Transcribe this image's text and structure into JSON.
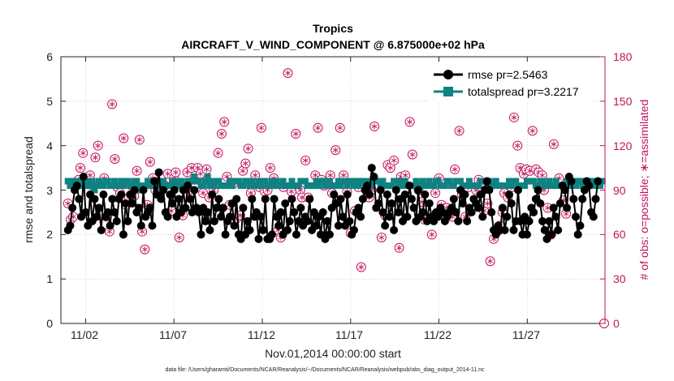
{
  "chart_data": {
    "type": "line",
    "title_line1": "Tropics",
    "title_line2": "AIRCRAFT_V_WIND_COMPONENT @ 6.875000e+02 hPa",
    "xlabel": "Nov.01,2014 00:00:00 start",
    "ylabel_left": "rmse and totalspread",
    "ylabel_right": "# of obs: o=possible; ∗=assimilated",
    "footnote": "data file: /Users/gharamti/Documents/NCAR/Reanalysis/~/Documents/NCAR/Reanalysis/webpub/obs_diag_output_2014-11.nc",
    "xlim": [
      0.6,
      31.4
    ],
    "ylim_left": [
      0,
      6
    ],
    "ylim_right": [
      0,
      180
    ],
    "x_ticks": [
      2,
      7,
      12,
      17,
      22,
      27
    ],
    "x_tick_labels": [
      "11/02",
      "11/07",
      "11/12",
      "11/17",
      "11/22",
      "11/27"
    ],
    "y_ticks_left": [
      "0",
      "1",
      "2",
      "3",
      "4",
      "5",
      "6"
    ],
    "y_ticks_right": [
      "0",
      "30",
      "60",
      "90",
      "120",
      "150",
      "180"
    ],
    "colors": {
      "rmse": "#000000",
      "spread": "#0f8282",
      "obs": "#c0135e"
    },
    "legend": [
      {
        "name": "rmse pr=2.5463"
      },
      {
        "name": "totalspread pr=3.2217"
      }
    ],
    "series_rmse": {
      "name": "rmse",
      "axis": "left",
      "values": [
        2.1,
        2.2,
        2.6,
        3.0,
        3.1,
        2.8,
        2.4,
        3.3,
        2.5,
        2.2,
        2.9,
        2.3,
        2.8,
        2.4,
        2.6,
        2.1,
        2.9,
        2.4,
        2.5,
        2.2,
        2.8,
        2.5,
        2.3,
        2.8,
        2.9,
        2.0,
        2.7,
        2.3,
        2.9,
        2.7,
        3.0,
        2.5,
        2.6,
        2.2,
        3.0,
        2.4,
        2.5,
        2.6,
        2.2,
        3.2,
        2.9,
        3.4,
        2.8,
        3.0,
        2.5,
        2.4,
        2.9,
        2.7,
        3.0,
        2.4,
        2.8,
        2.5,
        3.0,
        2.6,
        3.1,
        2.8,
        2.5,
        3.0,
        2.6,
        2.5,
        2.0,
        2.6,
        2.3,
        2.5,
        2.1,
        2.9,
        2.3,
        2.6,
        2.8,
        2.4,
        2.6,
        2.0,
        2.3,
        2.4,
        2.7,
        2.2,
        2.8,
        2.0,
        1.9,
        2.6,
        2.0,
        2.3,
        2.1,
        2.8,
        2.4,
        2.5,
        1.9,
        2.4,
        2.1,
        2.8,
        1.9,
        1.9,
        2.0,
        2.8,
        2.4,
        2.2,
        2.5,
        2.0,
        2.7,
        2.1,
        2.3,
        2.8,
        2.5,
        2.0,
        2.3,
        2.6,
        2.2,
        2.4,
        2.3,
        2.8,
        2.1,
        2.5,
        2.2,
        2.4,
        2.0,
        2.5,
        1.9,
        2.3,
        2.0,
        2.6,
        2.9,
        2.7,
        2.2,
        2.8,
        2.4,
        2.2,
        2.9,
        2.3,
        2.0,
        2.1,
        2.5,
        2.6,
        2.4,
        2.8,
        3.0,
        3.1,
        2.9,
        3.5,
        3.3,
        2.6,
        2.7,
        3.0,
        2.5,
        2.2,
        2.9,
        2.4,
        2.7,
        2.1,
        3.0,
        2.5,
        2.8,
        2.3,
        2.9,
        2.4,
        3.1,
        2.8,
        2.6,
        2.3,
        3.0,
        2.4,
        2.5,
        2.9,
        2.3,
        2.7,
        2.4,
        2.3,
        2.5,
        2.4,
        2.6,
        2.5,
        2.3,
        2.4,
        2.5,
        2.6,
        2.8,
        2.5,
        2.3,
        3.0,
        2.7,
        2.9,
        2.3,
        2.6,
        2.5,
        2.8,
        2.7,
        2.6,
        2.9,
        2.4,
        3.0,
        3.2,
        3.0,
        2.5,
        2.1,
        2.0,
        2.2,
        2.1,
        2.6,
        2.1,
        2.4,
        2.9,
        2.7,
        2.1,
        2.3,
        3.0,
        2.3,
        2.0,
        2.4,
        2.0,
        2.3,
        2.6,
        2.5,
        2.8,
        3.0,
        2.7,
        2.3,
        2.1,
        1.9,
        2.3,
        2.0,
        2.6,
        2.4,
        2.1,
        2.7,
        3.1,
        3.0,
        2.6,
        3.3,
        3.2,
        2.8,
        2.4,
        2.0,
        2.2,
        2.8,
        3.0,
        3.2,
        3.1,
        2.5,
        2.4,
        2.8,
        3.2
      ]
    },
    "series_spread": {
      "name": "totalspread",
      "axis": "left",
      "values": [
        3.2,
        3.1,
        3.2,
        3.2,
        3.2,
        3.1,
        3.1,
        3.2,
        3.1,
        3.2,
        3.1,
        3.2,
        3.0,
        3.1,
        3.2,
        3.1,
        3.1,
        3.2,
        3.2,
        3.1,
        3.1,
        3.2,
        3.1,
        3.1,
        3.2,
        3.1,
        3.2,
        3.2,
        3.1,
        3.1,
        3.2,
        3.2,
        3.1,
        3.0,
        3.1,
        3.1,
        3.2,
        3.1,
        3.2,
        3.2,
        3.1,
        3.2,
        3.1,
        3.2,
        3.1,
        3.1,
        3.1,
        3.2,
        3.1,
        3.2,
        3.1,
        3.2,
        3.1,
        3.1,
        3.2,
        3.2,
        3.2,
        3.3,
        3.2,
        3.2,
        3.1,
        3.1,
        3.2,
        3.3,
        3.1,
        3.2,
        3.1,
        3.2,
        3.2,
        3.1,
        3.1,
        3.1,
        3.1,
        3.2,
        3.1,
        3.2,
        3.2,
        3.2,
        3.1,
        3.1,
        3.2,
        3.2,
        3.1,
        3.2,
        3.1,
        3.1,
        3.2,
        3.1,
        3.2,
        3.2,
        3.1,
        3.1,
        3.2,
        3.1,
        3.2,
        3.1,
        3.1,
        3.2,
        3.1,
        3.1,
        3.1,
        3.2,
        3.1,
        3.1,
        3.1,
        3.2,
        3.2,
        3.2,
        3.1,
        3.1,
        3.1,
        3.1,
        3.2,
        3.1,
        3.2,
        3.2,
        3.1,
        3.1,
        3.2,
        3.1,
        3.1,
        3.1,
        3.2,
        3.1,
        3.2,
        3.2,
        3.1,
        3.2,
        3.2,
        3.1,
        3.2,
        3.1,
        3.2,
        3.2,
        3.1,
        3.2,
        3.1,
        3.1,
        3.2,
        3.2,
        3.2,
        3.1,
        3.2,
        3.1,
        3.1,
        3.1,
        3.1,
        3.2,
        3.2,
        3.1,
        3.2,
        3.1,
        3.2,
        3.1,
        3.1,
        3.1,
        3.1,
        3.2,
        3.1,
        3.1,
        3.2,
        3.1,
        3.1,
        3.2,
        3.1,
        3.1,
        3.2,
        3.2,
        3.1,
        3.1,
        3.1,
        3.2,
        3.2,
        3.1,
        3.1,
        3.2,
        3.2,
        3.2,
        3.1,
        3.1,
        3.1,
        3.2,
        3.1,
        3.1,
        3.1,
        3.1,
        3.2,
        3.2,
        3.2,
        3.1,
        3.2,
        3.1,
        3.1,
        3.2,
        3.1,
        3.1,
        3.1,
        3.1,
        3.1,
        3.2,
        3.1,
        3.2,
        3.2,
        3.1,
        3.1,
        3.1,
        3.1,
        3.2,
        3.2,
        3.2,
        3.2,
        3.1,
        3.1,
        3.2,
        3.2,
        3.1,
        3.1,
        3.2,
        3.1,
        3.1,
        3.2,
        3.1,
        3.1,
        3.1,
        3.1,
        3.2,
        3.2,
        3.1,
        3.2,
        3.1,
        3.2,
        3.2,
        3.1,
        3.2,
        3.2,
        3.2,
        3.2,
        3.1,
        3.2,
        3.1,
        3.1,
        3.2
      ]
    },
    "series_obs_possible": {
      "name": "obs possible",
      "axis": "right",
      "points": [
        [
          1.0,
          81
        ],
        [
          1.15,
          70
        ],
        [
          1.3,
          72
        ],
        [
          1.5,
          93
        ],
        [
          1.6,
          97
        ],
        [
          1.7,
          105
        ],
        [
          1.85,
          115
        ],
        [
          2.1,
          94
        ],
        [
          2.25,
          100
        ],
        [
          2.4,
          93
        ],
        [
          2.55,
          112
        ],
        [
          2.7,
          120
        ],
        [
          2.85,
          94
        ],
        [
          3.05,
          98
        ],
        [
          3.2,
          72
        ],
        [
          3.35,
          62
        ],
        [
          3.5,
          148
        ],
        [
          3.65,
          111
        ],
        [
          3.8,
          92
        ],
        [
          3.95,
          88
        ],
        [
          4.15,
          125
        ],
        [
          4.3,
          80
        ],
        [
          4.45,
          85
        ],
        [
          4.6,
          93
        ],
        [
          4.75,
          86
        ],
        [
          4.9,
          103
        ],
        [
          5.05,
          124
        ],
        [
          5.2,
          62
        ],
        [
          5.35,
          50
        ],
        [
          5.5,
          80
        ],
        [
          5.65,
          109
        ],
        [
          5.8,
          98
        ],
        [
          5.95,
          90
        ],
        [
          6.2,
          87
        ],
        [
          6.35,
          92
        ],
        [
          6.5,
          93
        ],
        [
          6.65,
          101
        ],
        [
          6.85,
          76
        ],
        [
          7.0,
          98
        ],
        [
          7.1,
          102
        ],
        [
          7.3,
          58
        ],
        [
          7.5,
          73
        ],
        [
          7.75,
          102
        ],
        [
          7.9,
          90
        ],
        [
          8.0,
          105
        ],
        [
          8.15,
          97
        ],
        [
          8.35,
          105
        ],
        [
          8.5,
          101
        ],
        [
          8.65,
          88
        ],
        [
          8.85,
          104
        ],
        [
          9.0,
          85
        ],
        [
          9.25,
          90
        ],
        [
          9.5,
          115
        ],
        [
          9.7,
          128
        ],
        [
          9.85,
          136
        ],
        [
          10.0,
          99
        ],
        [
          10.15,
          80
        ],
        [
          10.35,
          94
        ],
        [
          10.55,
          71
        ],
        [
          10.75,
          73
        ],
        [
          10.9,
          103
        ],
        [
          11.05,
          108
        ],
        [
          11.2,
          118
        ],
        [
          11.35,
          88
        ],
        [
          11.6,
          100
        ],
        [
          11.85,
          92
        ],
        [
          11.95,
          132
        ],
        [
          12.15,
          89
        ],
        [
          12.3,
          90
        ],
        [
          12.45,
          105
        ],
        [
          12.65,
          98
        ],
        [
          12.75,
          94
        ],
        [
          12.9,
          63
        ],
        [
          13.05,
          58
        ],
        [
          13.2,
          92
        ],
        [
          13.45,
          169
        ],
        [
          13.65,
          89
        ],
        [
          13.9,
          128
        ],
        [
          14.15,
          90
        ],
        [
          14.25,
          85
        ],
        [
          14.45,
          110
        ],
        [
          14.6,
          85
        ],
        [
          15.0,
          100
        ],
        [
          15.15,
          132
        ],
        [
          15.35,
          97
        ],
        [
          15.5,
          93
        ],
        [
          15.85,
          100
        ],
        [
          15.95,
          88
        ],
        [
          16.15,
          117
        ],
        [
          16.4,
          132
        ],
        [
          16.6,
          100
        ],
        [
          16.8,
          89
        ],
        [
          17.0,
          61
        ],
        [
          17.25,
          76
        ],
        [
          17.45,
          92
        ],
        [
          17.6,
          38
        ],
        [
          17.95,
          88
        ],
        [
          18.05,
          85
        ],
        [
          18.2,
          90
        ],
        [
          18.35,
          133
        ],
        [
          18.75,
          58
        ],
        [
          18.95,
          73
        ],
        [
          19.1,
          107
        ],
        [
          19.25,
          105
        ],
        [
          19.45,
          110
        ],
        [
          19.75,
          51
        ],
        [
          19.85,
          99
        ],
        [
          20.1,
          100
        ],
        [
          20.35,
          136
        ],
        [
          20.5,
          114
        ],
        [
          20.75,
          93
        ],
        [
          20.85,
          90
        ],
        [
          21.05,
          82
        ],
        [
          21.2,
          70
        ],
        [
          21.6,
          60
        ],
        [
          21.8,
          88
        ],
        [
          22.0,
          98
        ],
        [
          22.15,
          80
        ],
        [
          22.3,
          73
        ],
        [
          22.45,
          78
        ],
        [
          22.75,
          72
        ],
        [
          22.9,
          104
        ],
        [
          23.15,
          130
        ],
        [
          23.3,
          87
        ],
        [
          23.5,
          72
        ],
        [
          23.65,
          92
        ],
        [
          24.1,
          90
        ],
        [
          24.25,
          97
        ],
        [
          24.45,
          92
        ],
        [
          24.55,
          76
        ],
        [
          24.75,
          81
        ],
        [
          24.9,
          42
        ],
        [
          25.1,
          57
        ],
        [
          25.3,
          62
        ],
        [
          25.45,
          66
        ],
        [
          25.6,
          75
        ],
        [
          25.7,
          88
        ],
        [
          25.9,
          85
        ],
        [
          26.1,
          92
        ],
        [
          26.25,
          139
        ],
        [
          26.45,
          120
        ],
        [
          26.6,
          105
        ],
        [
          26.8,
          101
        ],
        [
          26.95,
          104
        ],
        [
          27.15,
          103
        ],
        [
          27.3,
          130
        ],
        [
          27.5,
          104
        ],
        [
          27.65,
          102
        ],
        [
          27.85,
          100
        ],
        [
          27.95,
          90
        ],
        [
          28.15,
          78
        ],
        [
          28.35,
          60
        ],
        [
          28.5,
          121
        ],
        [
          28.8,
          98
        ],
        [
          29.05,
          83
        ],
        [
          29.2,
          74
        ]
      ]
    }
  }
}
